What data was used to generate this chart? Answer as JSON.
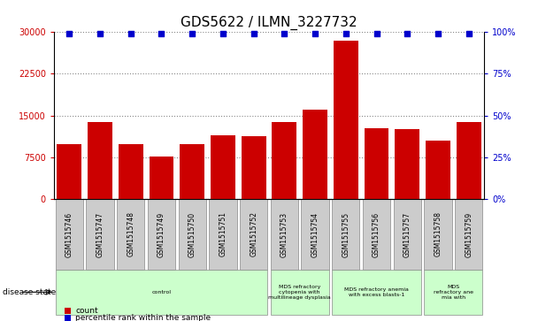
{
  "title": "GDS5622 / ILMN_3227732",
  "samples": [
    "GSM1515746",
    "GSM1515747",
    "GSM1515748",
    "GSM1515749",
    "GSM1515750",
    "GSM1515751",
    "GSM1515752",
    "GSM1515753",
    "GSM1515754",
    "GSM1515755",
    "GSM1515756",
    "GSM1515757",
    "GSM1515758",
    "GSM1515759"
  ],
  "counts": [
    9800,
    13800,
    9800,
    7600,
    9800,
    11500,
    11300,
    13800,
    16000,
    28500,
    12800,
    12500,
    10500,
    13800
  ],
  "percentile_ranks": [
    99,
    99,
    99,
    99,
    99,
    99,
    99,
    99,
    99,
    99,
    99,
    99,
    99,
    99
  ],
  "bar_color": "#cc0000",
  "percentile_color": "#0000cc",
  "ylim_left": [
    0,
    30000
  ],
  "ylim_right": [
    0,
    100
  ],
  "yticks_left": [
    0,
    7500,
    15000,
    22500,
    30000
  ],
  "yticks_right": [
    0,
    25,
    50,
    75,
    100
  ],
  "disease_states": [
    {
      "label": "control",
      "start": 0,
      "end": 7,
      "color": "#ccffcc"
    },
    {
      "label": "MDS refractory\ncytopenia with\nmultilineage dysplasia",
      "start": 7,
      "end": 9,
      "color": "#ccffcc"
    },
    {
      "label": "MDS refractory anemia\nwith excess blasts-1",
      "start": 9,
      "end": 12,
      "color": "#ccffcc"
    },
    {
      "label": "MDS\nrefractory ane\nmia with",
      "start": 12,
      "end": 14,
      "color": "#ccffcc"
    }
  ],
  "legend_count_color": "#cc0000",
  "legend_pct_color": "#0000cc",
  "legend_count_label": "count",
  "legend_pct_label": "percentile rank within the sample",
  "disease_state_label": "disease state",
  "title_fontsize": 11,
  "axis_label_color_left": "#cc0000",
  "axis_label_color_right": "#0000cc",
  "background_color": "#ffffff",
  "grid_color": "#888888",
  "sample_bg_color": "#cccccc",
  "border_color": "#888888"
}
